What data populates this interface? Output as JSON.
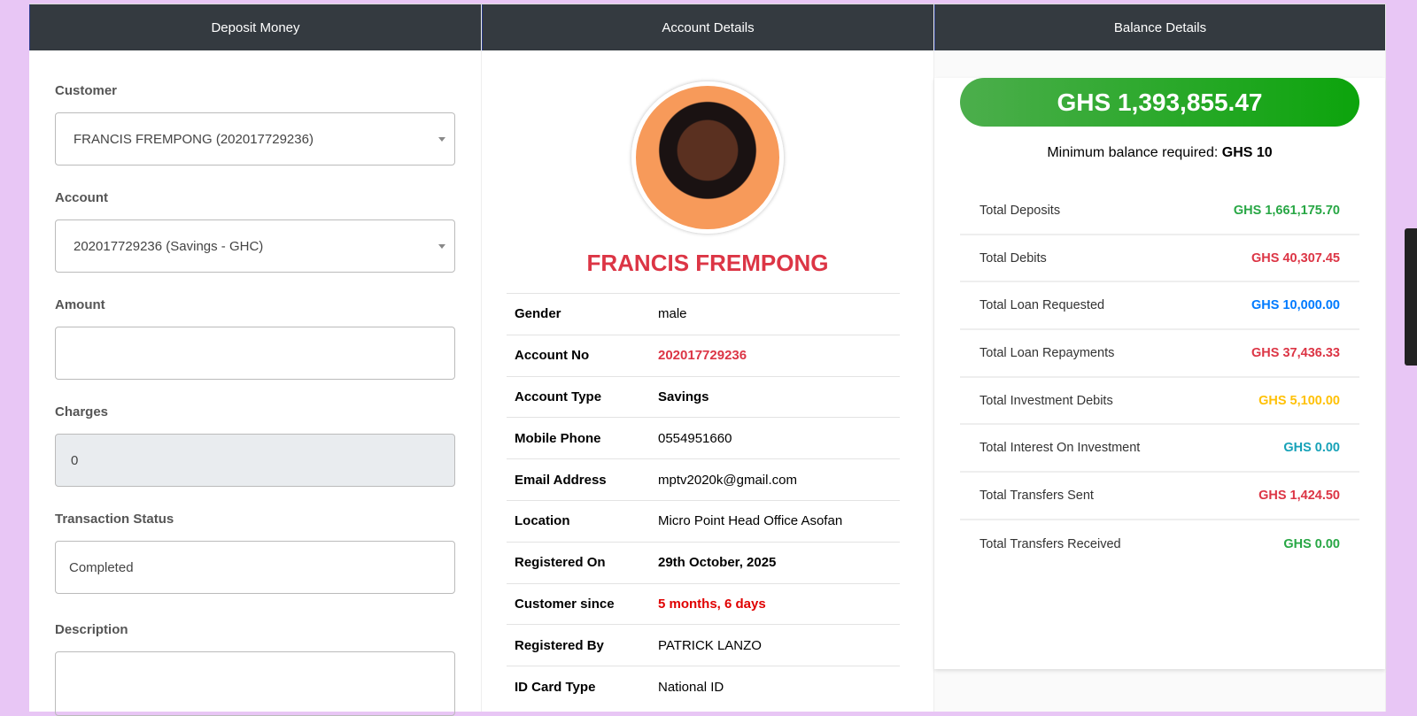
{
  "headers": {
    "deposit": "Deposit Money",
    "account": "Account Details",
    "balance": "Balance Details"
  },
  "form": {
    "customer_label": "Customer",
    "customer_value": "FRANCIS FREMPONG (202017729236)",
    "account_label": "Account",
    "account_value": "202017729236 (Savings - GHC)",
    "amount_label": "Amount",
    "amount_value": "",
    "charges_label": "Charges",
    "charges_value": "0",
    "status_label": "Transaction Status",
    "status_value": "Completed",
    "description_label": "Description",
    "description_value": ""
  },
  "profile": {
    "name": "FRANCIS FREMPONG",
    "rows": [
      {
        "k": "Gender",
        "v": "male",
        "color": "#000",
        "bold": false
      },
      {
        "k": "Account No",
        "v": "202017729236",
        "color": "#dc3545",
        "bold": true
      },
      {
        "k": "Account Type",
        "v": "Savings",
        "color": "#000",
        "bold": true
      },
      {
        "k": "Mobile Phone",
        "v": "0554951660",
        "color": "#000",
        "bold": false
      },
      {
        "k": "Email Address",
        "v": "mptv2020k@gmail.com",
        "color": "#000",
        "bold": false
      },
      {
        "k": "Location",
        "v": "Micro Point Head Office Asofan",
        "color": "#000",
        "bold": false
      },
      {
        "k": "Registered On",
        "v": "29th October, 2025",
        "color": "#000",
        "bold": true
      },
      {
        "k": "Customer since",
        "v": "5 months, 6 days",
        "color": "#e00000",
        "bold": true
      },
      {
        "k": "Registered By",
        "v": "PATRICK LANZO",
        "color": "#000",
        "bold": false
      },
      {
        "k": "ID Card Type",
        "v": "National ID",
        "color": "#000",
        "bold": false
      }
    ]
  },
  "balance": {
    "amount": "GHS 1,393,855.47",
    "min_label": "Minimum balance required:",
    "min_value": "GHS 10",
    "rows": [
      {
        "k": "Total Deposits",
        "v": "GHS 1,661,175.70",
        "color": "#28a745"
      },
      {
        "k": "Total Debits",
        "v": "GHS 40,307.45",
        "color": "#dc3545"
      },
      {
        "k": "Total Loan Requested",
        "v": "GHS 10,000.00",
        "color": "#007bff"
      },
      {
        "k": "Total Loan Repayments",
        "v": "GHS 37,436.33",
        "color": "#dc3545"
      },
      {
        "k": "Total Investment Debits",
        "v": "GHS 5,100.00",
        "color": "#ffc107"
      },
      {
        "k": "Total Interest On Investment",
        "v": "GHS 0.00",
        "color": "#17a2b8"
      },
      {
        "k": "Total Transfers Sent",
        "v": "GHS 1,424.50",
        "color": "#dc3545"
      },
      {
        "k": "Total Transfers Received",
        "v": "GHS 0.00",
        "color": "#28a745"
      }
    ]
  }
}
